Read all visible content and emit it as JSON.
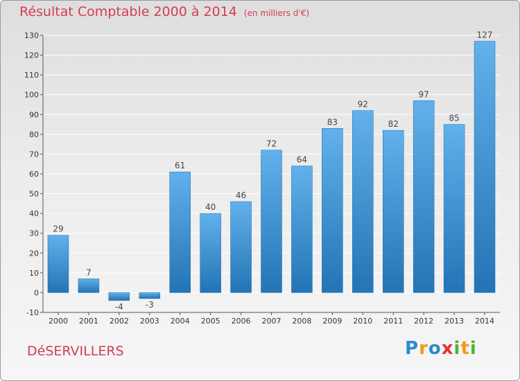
{
  "header": {
    "title": "Résultat Comptable 2000 à 2014",
    "subtitle": "(en milliers d'€)"
  },
  "commune": "DéSERVILLERS",
  "logo": {
    "text": "Proxiti",
    "letters": [
      {
        "ch": "P",
        "color": "#2a8ad0"
      },
      {
        "ch": "r",
        "color": "#f39a1a"
      },
      {
        "ch": "o",
        "color": "#2a8ad0"
      },
      {
        "ch": "x",
        "color": "#e2342a"
      },
      {
        "ch": "i",
        "color": "#53b136"
      },
      {
        "ch": "t",
        "color": "#f39a1a"
      },
      {
        "ch": "i",
        "color": "#53b136"
      }
    ]
  },
  "colors": {
    "title": "#d33c57",
    "bar_light": "#62b1ec",
    "bar_dark": "#2374b5",
    "grid": "#ffffff",
    "axis": "#555555"
  },
  "chart_data": {
    "type": "bar",
    "title": "Résultat Comptable 2000 à 2014",
    "subtitle": "(en milliers d'€)",
    "categories": [
      "2000",
      "2001",
      "2002",
      "2003",
      "2004",
      "2005",
      "2006",
      "2007",
      "2008",
      "2009",
      "2010",
      "2011",
      "2012",
      "2013",
      "2014"
    ],
    "values": [
      29,
      7,
      -4,
      -3,
      61,
      40,
      46,
      72,
      64,
      83,
      92,
      82,
      97,
      85,
      127
    ],
    "ylim": [
      -10,
      130
    ],
    "yticks": [
      -10,
      0,
      10,
      20,
      30,
      40,
      50,
      60,
      70,
      80,
      90,
      100,
      110,
      120,
      130
    ],
    "grid": true,
    "legend": "none"
  }
}
